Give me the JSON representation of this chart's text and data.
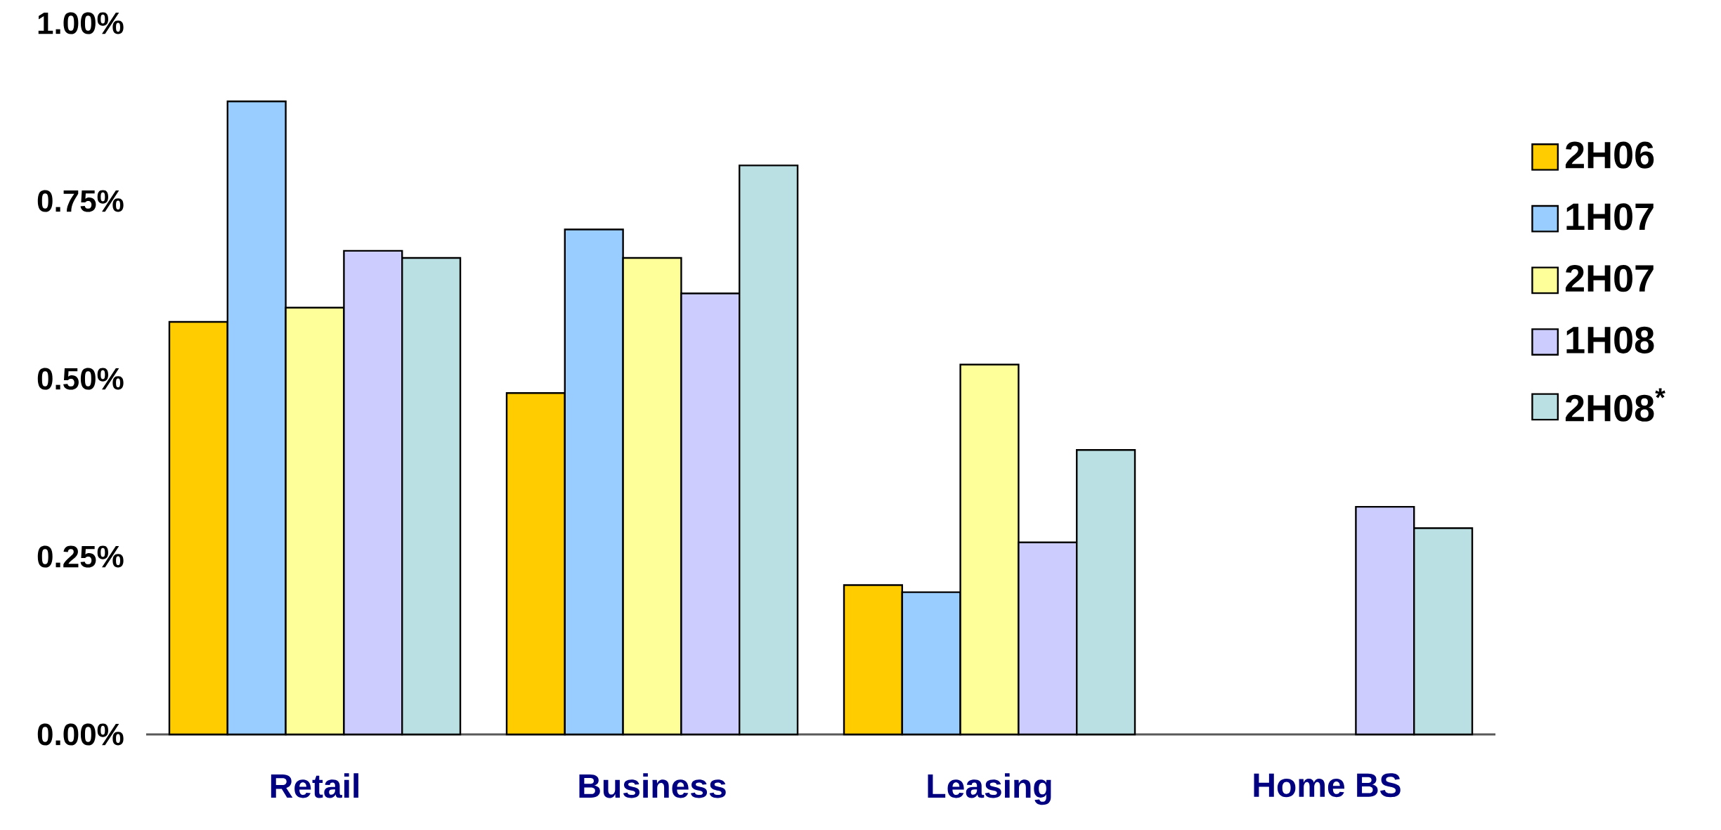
{
  "chart_data": {
    "type": "bar",
    "categories": [
      "Retail",
      "Business",
      "Leasing",
      "Home BS"
    ],
    "series": [
      {
        "name": "2H06",
        "color": "#ffcc00",
        "values": [
          0.58,
          0.48,
          0.21,
          null
        ]
      },
      {
        "name": "1H07",
        "color": "#99ccff",
        "values": [
          0.89,
          0.71,
          0.2,
          null
        ]
      },
      {
        "name": "2H07",
        "color": "#ffff99",
        "values": [
          0.6,
          0.67,
          0.52,
          null
        ]
      },
      {
        "name": "1H08",
        "color": "#ccccff",
        "values": [
          0.68,
          0.62,
          0.27,
          0.32
        ]
      },
      {
        "name": "2H08$^{*}$",
        "color": "#bbe0e3",
        "values": [
          0.67,
          0.8,
          0.4,
          0.29
        ]
      }
    ],
    "ylim": [
      0,
      1
    ],
    "yticks": [
      {
        "value": 0,
        "label": "0.00%"
      },
      {
        "value": 0.25,
        "label": "0.25%"
      },
      {
        "value": 0.5,
        "label": "0.50%"
      },
      {
        "value": 0.75,
        "label": "0.75%"
      },
      {
        "value": 1,
        "label": "1.00%"
      }
    ],
    "grid": false,
    "legend": "right"
  }
}
